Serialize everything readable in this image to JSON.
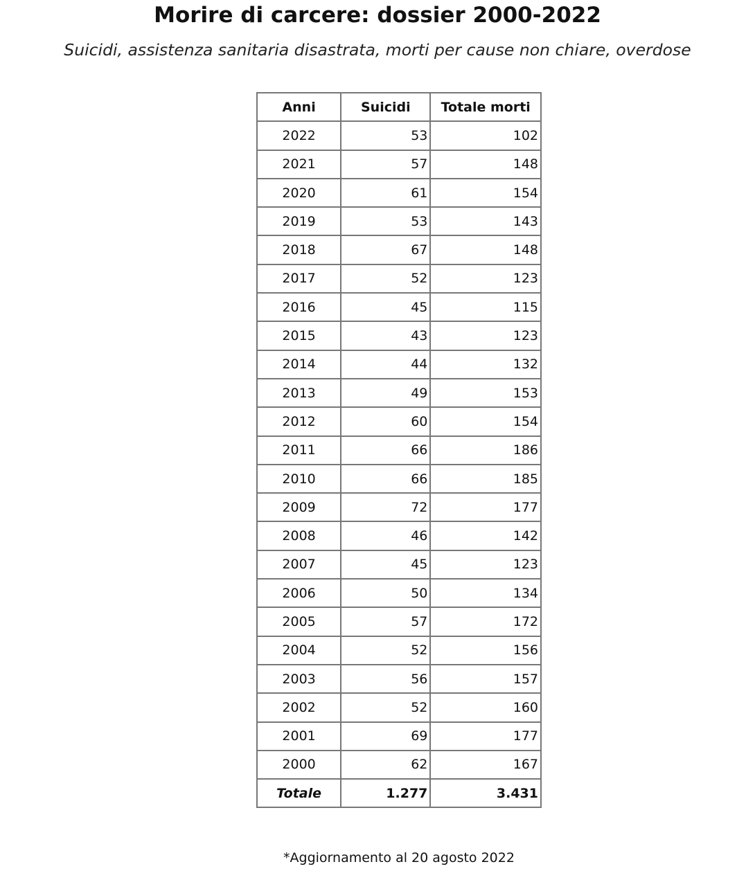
{
  "title": "Morire di carcere: dossier 2000-2022",
  "subtitle": "Suicidi, assistenza sanitaria disastrata, morti per cause non chiare, overdose",
  "table": {
    "headers": [
      "Anni",
      "Suicidi",
      "Totale morti"
    ],
    "rows": [
      [
        "2022",
        "53",
        "102"
      ],
      [
        "2021",
        "57",
        "148"
      ],
      [
        "2020",
        "61",
        "154"
      ],
      [
        "2019",
        "53",
        "143"
      ],
      [
        "2018",
        "67",
        "148"
      ],
      [
        "2017",
        "52",
        "123"
      ],
      [
        "2016",
        "45",
        "115"
      ],
      [
        "2015",
        "43",
        "123"
      ],
      [
        "2014",
        "44",
        "132"
      ],
      [
        "2013",
        "49",
        "153"
      ],
      [
        "2012",
        "60",
        "154"
      ],
      [
        "2011",
        "66",
        "186"
      ],
      [
        "2010",
        "66",
        "185"
      ],
      [
        "2009",
        "72",
        "177"
      ],
      [
        "2008",
        "46",
        "142"
      ],
      [
        "2007",
        "45",
        "123"
      ],
      [
        "2006",
        "50",
        "134"
      ],
      [
        "2005",
        "57",
        "172"
      ],
      [
        "2004",
        "52",
        "156"
      ],
      [
        "2003",
        "56",
        "157"
      ],
      [
        "2002",
        "52",
        "160"
      ],
      [
        "2001",
        "69",
        "177"
      ],
      [
        "2000",
        "62",
        "167"
      ]
    ],
    "total": [
      "Totale",
      "1.277",
      "3.431"
    ]
  },
  "note": "*Aggiornamento al 20 agosto 2022"
}
